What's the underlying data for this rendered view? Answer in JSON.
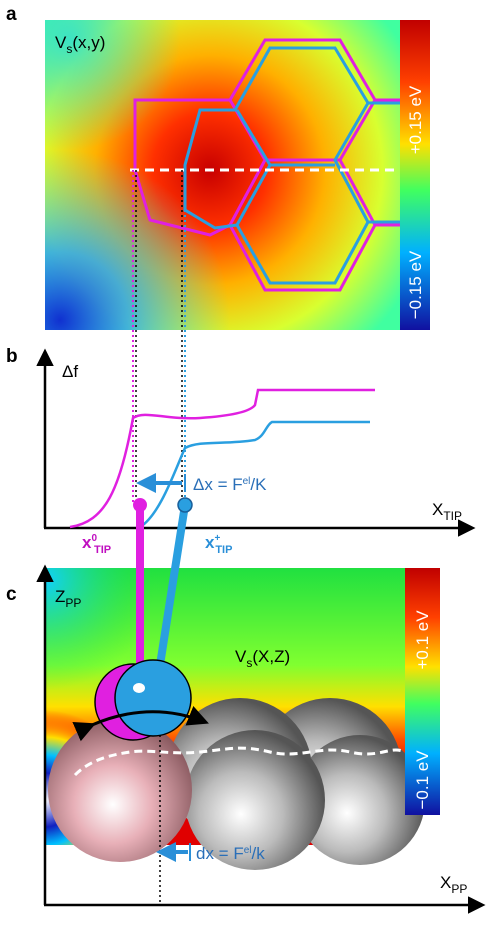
{
  "panels": {
    "a": {
      "label": "a",
      "title": {
        "main": "V",
        "sub": "s",
        "rest": "(x,y)"
      },
      "colorbar": {
        "max": "+0.15 eV",
        "min": "−0.15 eV"
      }
    },
    "b": {
      "label": "b",
      "y_axis": "Δf",
      "x_axis": {
        "main": "X",
        "sub": "TIP"
      },
      "shift": {
        "main": "Δx = F",
        "sup": "el",
        "rest": "/K"
      },
      "x0": {
        "main": "x",
        "sup": "0",
        "sub": "TIP"
      },
      "xplus": {
        "main": "x",
        "sup": "+",
        "sub": "TIP"
      }
    },
    "c": {
      "label": "c",
      "y_axis": {
        "main": "Z",
        "sub": "PP"
      },
      "title": {
        "main": "V",
        "sub": "s",
        "rest": "(X,Z)"
      },
      "colorbar": {
        "max": "+0.1 eV",
        "min": "−0.1 eV"
      },
      "shift": {
        "main": "dx = F",
        "sup": "el",
        "rest": "/k"
      },
      "x_axis": {
        "main": "X",
        "sub": "PP"
      }
    }
  }
}
